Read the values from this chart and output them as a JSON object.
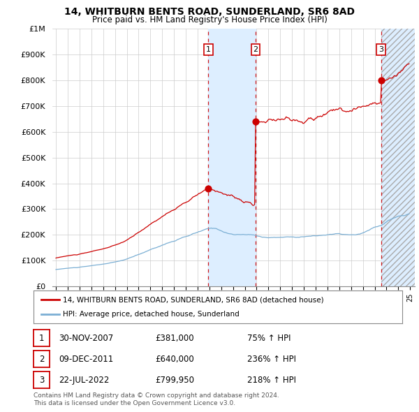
{
  "title": "14, WHITBURN BENTS ROAD, SUNDERLAND, SR6 8AD",
  "subtitle": "Price paid vs. HM Land Registry's House Price Index (HPI)",
  "ylim": [
    0,
    1000000
  ],
  "yticks": [
    0,
    100000,
    200000,
    300000,
    400000,
    500000,
    600000,
    700000,
    800000,
    900000,
    1000000
  ],
  "ytick_labels": [
    "£0",
    "£100K",
    "£200K",
    "£300K",
    "£400K",
    "£500K",
    "£600K",
    "£700K",
    "£800K",
    "£900K",
    "£1M"
  ],
  "sale_years": [
    2007.917,
    2011.917,
    2022.542
  ],
  "sale_prices": [
    381000,
    640000,
    799950
  ],
  "sale_labels": [
    "1",
    "2",
    "3"
  ],
  "hpi_line_color": "#7bafd4",
  "price_line_color": "#cc0000",
  "sale_marker_color": "#cc0000",
  "shading_color": "#ddeeff",
  "vline_color": "#cc0000",
  "legend_entries": [
    "14, WHITBURN BENTS ROAD, SUNDERLAND, SR6 8AD (detached house)",
    "HPI: Average price, detached house, Sunderland"
  ],
  "table_rows": [
    [
      "1",
      "30-NOV-2007",
      "£381,000",
      "75% ↑ HPI"
    ],
    [
      "2",
      "09-DEC-2011",
      "£640,000",
      "236% ↑ HPI"
    ],
    [
      "3",
      "22-JUL-2022",
      "£799,950",
      "218% ↑ HPI"
    ]
  ],
  "footer_text": "Contains HM Land Registry data © Crown copyright and database right 2024.\nThis data is licensed under the Open Government Licence v3.0.",
  "background_color": "#ffffff",
  "grid_color": "#cccccc"
}
